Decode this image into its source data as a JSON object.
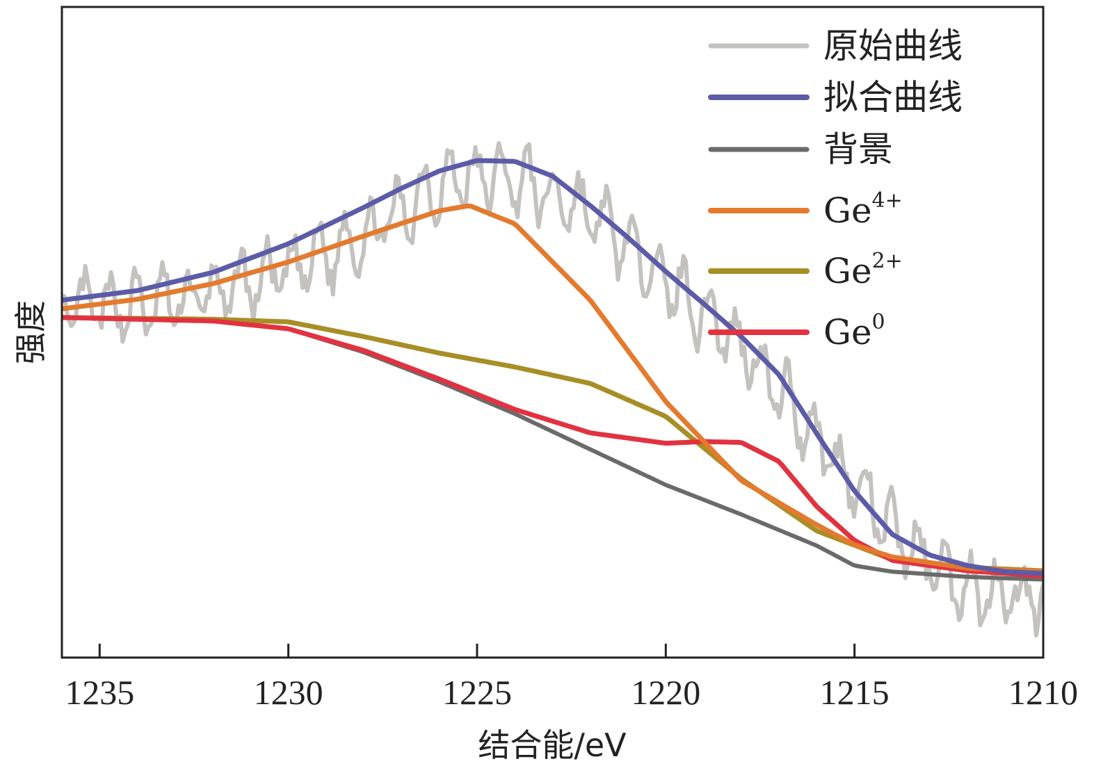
{
  "chart_data": {
    "type": "line",
    "title": "",
    "xlabel": "结合能/eV",
    "ylabel": "强度",
    "xlim": [
      1236,
      1210
    ],
    "ylim": [
      0,
      100
    ],
    "x_reversed": true,
    "xticks": [
      1235,
      1230,
      1225,
      1220,
      1215,
      1210
    ],
    "y_ticks_shown": false,
    "legend_position": "top-right",
    "series": [
      {
        "name": "原始曲线",
        "legend_base": "原始曲线",
        "legend_sup": "",
        "color": "#c4c2bf",
        "width": 6,
        "noisy": true,
        "x": [
          1236,
          1234,
          1232,
          1230,
          1228,
          1226,
          1225,
          1224,
          1222,
          1220,
          1218,
          1216,
          1214,
          1212,
          1210
        ],
        "y": [
          40.5,
          40.5,
          42,
          44.6,
          48.5,
          54.6,
          55.5,
          55.2,
          51.3,
          43.5,
          36.1,
          25.4,
          14.5,
          7.8,
          7.0
        ]
      },
      {
        "name": "拟合曲线",
        "legend_base": "拟合曲线",
        "legend_sup": "",
        "color": "#5b5ba8",
        "width": 7,
        "noisy": false,
        "x": [
          1236,
          1234,
          1232,
          1230,
          1228,
          1227,
          1226,
          1225,
          1224,
          1223,
          1222,
          1221,
          1220,
          1219,
          1218,
          1217,
          1216,
          1215,
          1214,
          1213,
          1212,
          1211,
          1210
        ],
        "y": [
          41.2,
          42.3,
          44.4,
          47.7,
          51.9,
          54.1,
          56.1,
          57.3,
          57.2,
          55.5,
          52.1,
          48.4,
          44.5,
          40.8,
          37.0,
          32.6,
          25.8,
          19.2,
          14.2,
          11.8,
          10.6,
          9.9,
          9.7
        ]
      },
      {
        "name": "背景",
        "legend_base": "背景",
        "legend_sup": "",
        "color": "#6a6a6a",
        "width": 6,
        "noisy": false,
        "x": [
          1236,
          1232,
          1230,
          1228,
          1226,
          1224,
          1222,
          1220,
          1218,
          1216,
          1215,
          1214,
          1212,
          1210
        ],
        "y": [
          39.2,
          38.9,
          37.9,
          35.2,
          31.8,
          28.1,
          24.0,
          19.9,
          16.5,
          12.9,
          10.6,
          9.9,
          9.3,
          9.0
        ]
      },
      {
        "name": "Ge⁴⁺",
        "legend_base": "Ge",
        "legend_sup": "4+",
        "color": "#e47a2d",
        "width": 7,
        "noisy": false,
        "x": [
          1236,
          1234,
          1232,
          1230,
          1228,
          1226,
          1225.2,
          1224,
          1222,
          1220,
          1218,
          1216,
          1215,
          1214,
          1212,
          1210
        ],
        "y": [
          40.2,
          41.3,
          43.1,
          45.6,
          48.6,
          51.5,
          52.1,
          50.0,
          41.2,
          29.5,
          20.4,
          15.3,
          13.0,
          11.6,
          10.3,
          9.9
        ]
      },
      {
        "name": "Ge²⁺",
        "legend_base": "Ge",
        "legend_sup": "2+",
        "color": "#a78e25",
        "width": 7,
        "noisy": false,
        "x": [
          1236,
          1232,
          1230,
          1228,
          1226,
          1224,
          1222,
          1220,
          1218,
          1216,
          1214,
          1212,
          1210
        ],
        "y": [
          39.2,
          39.0,
          38.7,
          37.0,
          35.1,
          33.5,
          31.6,
          27.8,
          20.6,
          14.6,
          11.3,
          10.4,
          10.0
        ]
      },
      {
        "name": "Ge⁰",
        "legend_base": "Ge",
        "legend_sup": "0",
        "color": "#e23240",
        "width": 7,
        "noisy": false,
        "x": [
          1236,
          1232,
          1230,
          1228,
          1226,
          1224,
          1222,
          1220,
          1219,
          1218,
          1217,
          1216,
          1215,
          1214,
          1212,
          1210
        ],
        "y": [
          39.2,
          38.8,
          37.9,
          35.4,
          32.1,
          28.6,
          25.9,
          24.7,
          24.9,
          24.8,
          22.6,
          17.4,
          13.5,
          11.2,
          10.0,
          9.4
        ]
      }
    ]
  }
}
